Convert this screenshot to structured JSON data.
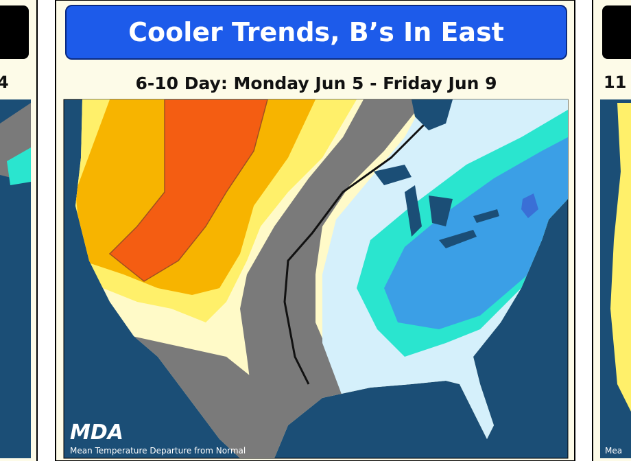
{
  "left_panel": {
    "subtitle": "4"
  },
  "center_panel": {
    "title": "Cooler Trends, B’s In East",
    "subtitle": "6-10 Day: Monday Jun 5 - Friday Jun 9",
    "logo": "MDA",
    "map_caption": "Mean Temperature Departure from Normal"
  },
  "right_panel": {
    "subtitle": "11",
    "map_caption": "Mea"
  }
}
